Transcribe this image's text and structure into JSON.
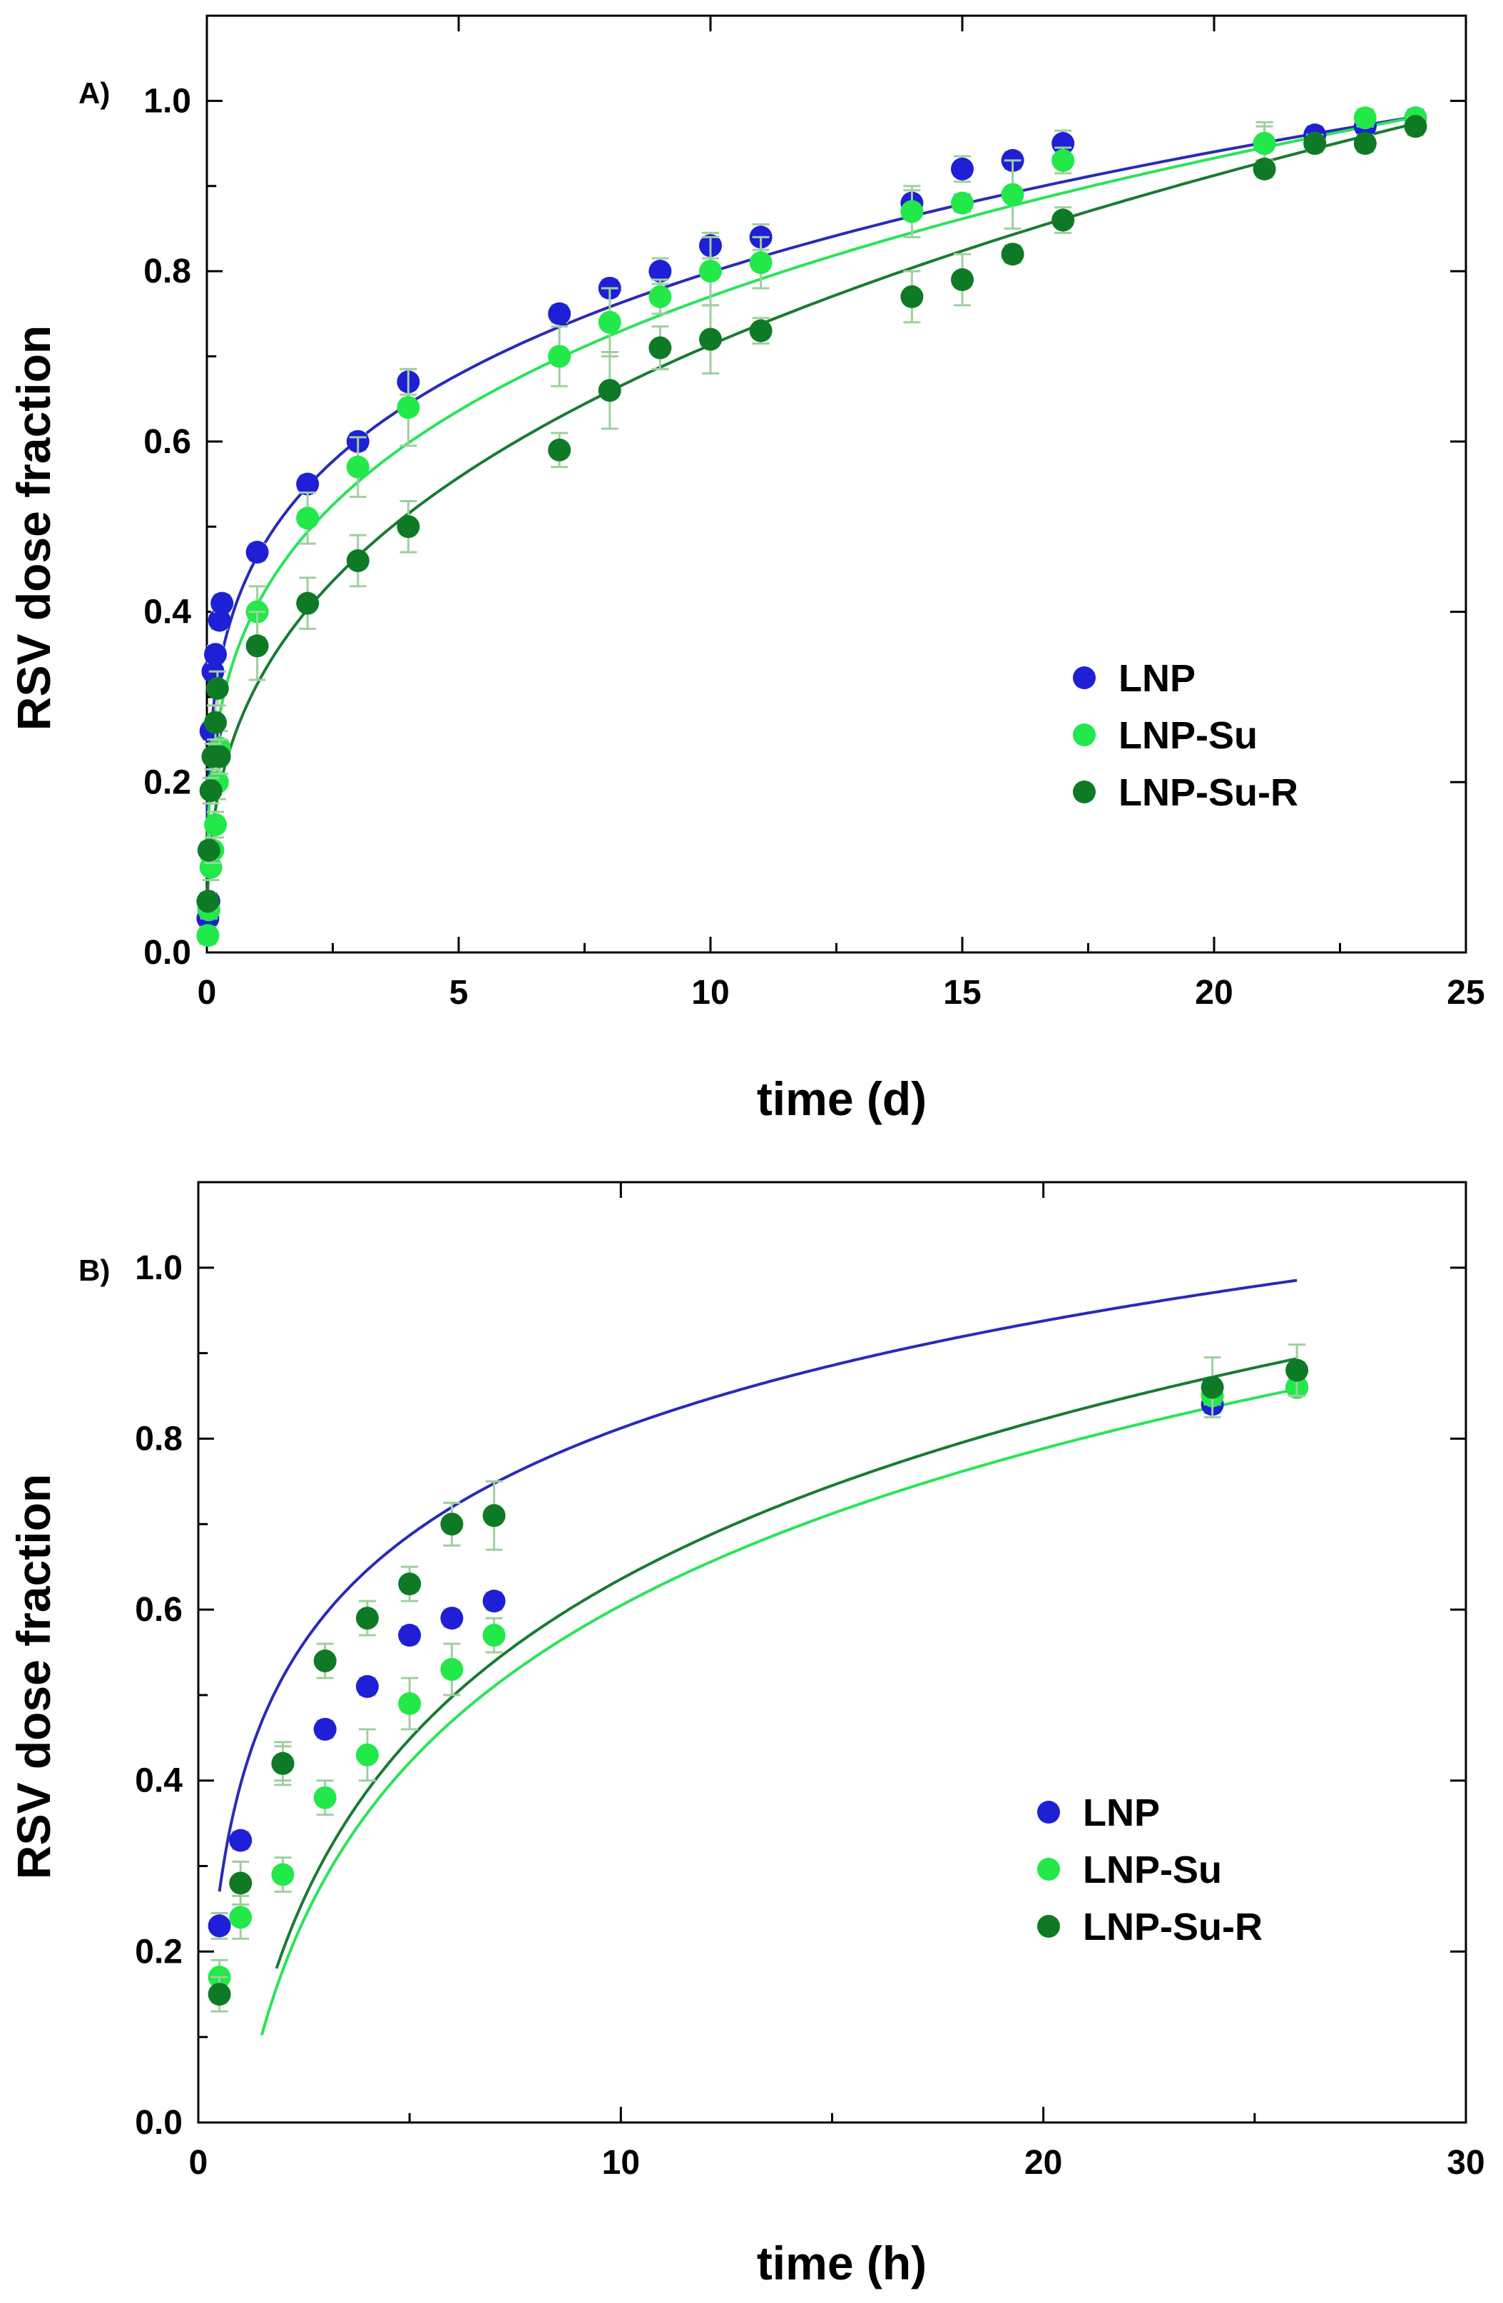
{
  "figure": {
    "panels": [
      {
        "id": "A",
        "panel_label": "A)"
      },
      {
        "id": "B",
        "panel_label": "B)"
      }
    ]
  },
  "colors": {
    "LNP": "#1f1fd6",
    "LNP-Su": "#22e84a",
    "LNP-Su-R": "#0f7a25",
    "LNP_line": "#2a2ab8",
    "LNP-Su_line": "#2be35a",
    "LNP-Su-R_line": "#1a7a34",
    "error_bar": "#9fcf9f",
    "axis": "#000000"
  },
  "chart_data": [
    {
      "type": "scatter",
      "panel": "A",
      "xlabel": "time (d)",
      "ylabel": "RSV dose fraction",
      "xlim": [
        0,
        25
      ],
      "ylim": [
        0,
        1.1
      ],
      "xticks": [
        0,
        5,
        10,
        15,
        20,
        25
      ],
      "yticks": [
        0.0,
        0.2,
        0.4,
        0.6,
        0.8,
        1.0
      ],
      "ytick_labels": [
        "0.0",
        "0.2",
        "0.4",
        "0.6",
        "0.8",
        "1.0"
      ],
      "legend": [
        "LNP",
        "LNP-Su",
        "LNP-Su-R"
      ],
      "legend_position": "center-right",
      "series": [
        {
          "name": "LNP",
          "x": [
            0.02,
            0.04,
            0.08,
            0.12,
            0.17,
            0.25,
            0.3,
            1,
            2,
            3,
            4,
            7,
            8,
            9,
            10,
            11,
            14,
            15,
            16,
            17,
            21,
            22,
            23,
            24
          ],
          "y": [
            0.04,
            0.06,
            0.26,
            0.33,
            0.35,
            0.39,
            0.41,
            0.47,
            0.55,
            0.6,
            0.67,
            0.75,
            0.78,
            0.8,
            0.83,
            0.84,
            0.88,
            0.92,
            0.93,
            0.95,
            0.95,
            0.96,
            0.97,
            0.98
          ],
          "err": [
            0.01,
            0.01,
            0.01,
            0.01,
            0.01,
            0.01,
            0.01,
            0.01,
            0.01,
            0.01,
            0.015,
            0.01,
            0.01,
            0.015,
            0.015,
            0.015,
            0.015,
            0.015,
            0.01,
            0.015,
            0.025,
            0.01,
            0.01,
            0.01
          ],
          "fit": {
            "model": "power",
            "a": 0.465,
            "b": 0.235
          }
        },
        {
          "name": "LNP-Su",
          "x": [
            0.02,
            0.04,
            0.08,
            0.12,
            0.17,
            0.21,
            0.25,
            1,
            2,
            3,
            4,
            7,
            8,
            9,
            10,
            11,
            14,
            15,
            16,
            17,
            21,
            22,
            23,
            24
          ],
          "y": [
            0.02,
            0.05,
            0.1,
            0.12,
            0.15,
            0.2,
            0.24,
            0.4,
            0.51,
            0.57,
            0.64,
            0.7,
            0.74,
            0.77,
            0.8,
            0.81,
            0.87,
            0.88,
            0.89,
            0.93,
            0.95,
            0.95,
            0.98,
            0.98
          ],
          "err": [
            0.01,
            0.01,
            0.015,
            0.015,
            0.015,
            0.02,
            0.02,
            0.03,
            0.03,
            0.035,
            0.045,
            0.035,
            0.04,
            0.02,
            0.04,
            0.03,
            0.03,
            0.01,
            0.04,
            0.015,
            0.02,
            0.01,
            0.01,
            0.01
          ],
          "fit": {
            "model": "power",
            "a": 0.408,
            "b": 0.276
          }
        },
        {
          "name": "LNP-Su-R",
          "x": [
            0.02,
            0.04,
            0.08,
            0.12,
            0.17,
            0.21,
            0.25,
            1,
            2,
            3,
            4,
            7,
            8,
            9,
            10,
            11,
            14,
            15,
            16,
            17,
            21,
            22,
            23,
            24
          ],
          "y": [
            0.06,
            0.12,
            0.19,
            0.23,
            0.27,
            0.31,
            0.23,
            0.36,
            0.41,
            0.46,
            0.5,
            0.59,
            0.66,
            0.71,
            0.72,
            0.73,
            0.77,
            0.79,
            0.82,
            0.86,
            0.92,
            0.95,
            0.95,
            0.97
          ],
          "err": [
            0.01,
            0.01,
            0.015,
            0.015,
            0.02,
            0.02,
            0.02,
            0.04,
            0.03,
            0.03,
            0.03,
            0.02,
            0.045,
            0.025,
            0.04,
            0.015,
            0.03,
            0.03,
            0.01,
            0.015,
            0.01,
            0.01,
            0.01,
            0.01
          ],
          "fit": {
            "model": "power",
            "a": 0.315,
            "b": 0.355
          }
        }
      ]
    },
    {
      "type": "scatter",
      "panel": "B",
      "xlabel": "time (h)",
      "ylabel": "RSV dose fraction",
      "xlim": [
        0,
        30
      ],
      "ylim": [
        0,
        1.1
      ],
      "xticks": [
        0,
        10,
        20,
        30
      ],
      "yticks": [
        0.0,
        0.2,
        0.4,
        0.6,
        0.8,
        1.0
      ],
      "ytick_labels": [
        "0.0",
        "0.2",
        "0.4",
        "0.6",
        "0.8",
        "1.0"
      ],
      "legend": [
        "LNP",
        "LNP-Su",
        "LNP-Su-R"
      ],
      "legend_position": "center-right",
      "series": [
        {
          "name": "LNP",
          "x": [
            0.5,
            1,
            2,
            3,
            4,
            5,
            6,
            7,
            24,
            26
          ],
          "y": [
            0.23,
            0.33,
            0.42,
            0.46,
            0.51,
            0.57,
            0.59,
            0.61,
            0.84,
            0.86
          ],
          "err": [
            0.015,
            0.01,
            0.02,
            0.01,
            0.01,
            0.01,
            0.01,
            0.01,
            0.01,
            0.01
          ],
          "fit": {
            "model": "log",
            "a": 0.27,
            "b": 0.181,
            "x0": 0.5
          }
        },
        {
          "name": "LNP-Su",
          "x": [
            0.5,
            1,
            2,
            3,
            4,
            5,
            6,
            7,
            24,
            26
          ],
          "y": [
            0.17,
            0.24,
            0.29,
            0.38,
            0.43,
            0.49,
            0.53,
            0.57,
            0.85,
            0.86
          ],
          "err": [
            0.02,
            0.025,
            0.02,
            0.02,
            0.03,
            0.03,
            0.03,
            0.02,
            0.01,
            0.01
          ],
          "fit": {
            "model": "log",
            "a": 0.102,
            "b": 0.265,
            "x0": 1.5
          }
        },
        {
          "name": "LNP-Su-R",
          "x": [
            0.5,
            1,
            2,
            3,
            4,
            5,
            6,
            7,
            24,
            26
          ],
          "y": [
            0.15,
            0.28,
            0.42,
            0.54,
            0.59,
            0.63,
            0.7,
            0.71,
            0.86,
            0.88
          ],
          "err": [
            0.02,
            0.025,
            0.025,
            0.02,
            0.02,
            0.02,
            0.025,
            0.04,
            0.035,
            0.03
          ],
          "fit": {
            "model": "log",
            "a": 0.18,
            "b": 0.27,
            "x0": 1.85
          }
        }
      ]
    }
  ]
}
